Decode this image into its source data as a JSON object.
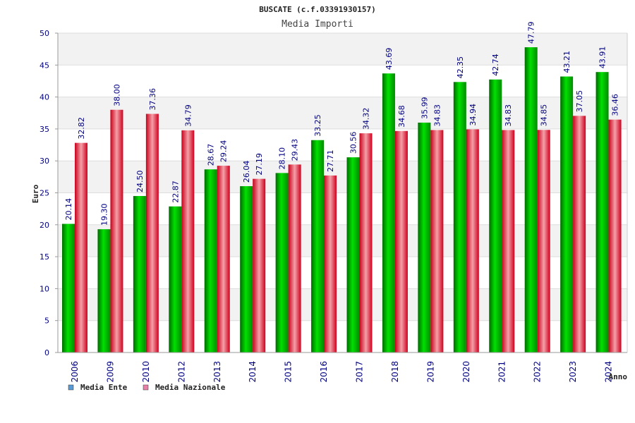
{
  "chart_data": {
    "type": "bar",
    "title": "BUSCATE (c.f.03391930157)",
    "subtitle": "Media Importi",
    "xlabel": "Anno",
    "ylabel": "Euro",
    "ylim": [
      0,
      50
    ],
    "yticks": [
      "0",
      "5",
      "10",
      "15",
      "20",
      "25",
      "30",
      "35",
      "40",
      "45",
      "50"
    ],
    "grid": true,
    "legend_position": "bottom-left",
    "categories": [
      "2006",
      "2009",
      "2010",
      "2012",
      "2013",
      "2014",
      "2015",
      "2016",
      "2017",
      "2018",
      "2019",
      "2020",
      "2021",
      "2022",
      "2023",
      "2024"
    ],
    "series": [
      {
        "name": "Media Ente",
        "legend_color": "#5b9bd5",
        "color": "#00c000",
        "values": [
          20.14,
          19.3,
          24.5,
          22.87,
          28.67,
          26.04,
          28.1,
          33.25,
          30.56,
          43.69,
          35.99,
          42.35,
          42.74,
          47.79,
          43.21,
          43.91
        ],
        "labels": [
          "20.14",
          "19.30",
          "24.50",
          "22.87",
          "28.67",
          "26.04",
          "28.10",
          "33.25",
          "30.56",
          "43.69",
          "35.99",
          "42.35",
          "42.74",
          "47.79",
          "43.21",
          "43.91"
        ]
      },
      {
        "name": "Media Nazionale",
        "legend_color": "#e87fa8",
        "color": "#e8182c",
        "values": [
          32.82,
          38.0,
          37.36,
          34.79,
          29.24,
          27.19,
          29.43,
          27.71,
          34.32,
          34.68,
          34.83,
          34.94,
          34.83,
          34.85,
          37.05,
          36.46
        ],
        "labels": [
          "32.82",
          "38.00",
          "37.36",
          "34.79",
          "29.24",
          "27.19",
          "29.43",
          "27.71",
          "34.32",
          "34.68",
          "34.83",
          "34.94",
          "34.83",
          "34.85",
          "37.05",
          "36.46"
        ]
      }
    ]
  }
}
